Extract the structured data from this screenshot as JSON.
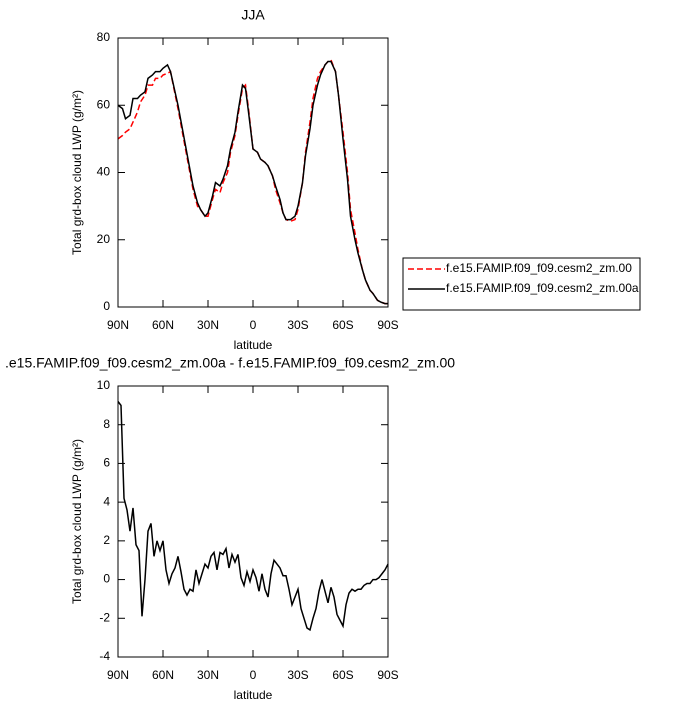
{
  "chart_data": [
    {
      "type": "line",
      "title": "JJA",
      "xlabel": "latitude",
      "ylabel": "Total grd-box cloud LWP (g/m²)",
      "xlim": [
        90,
        -90
      ],
      "ylim": [
        0,
        80
      ],
      "xticks": [
        {
          "value": 90,
          "label": "90N"
        },
        {
          "value": 60,
          "label": "60N"
        },
        {
          "value": 30,
          "label": "30N"
        },
        0,
        {
          "value": -30,
          "label": "30S"
        },
        {
          "value": -60,
          "label": "60S"
        },
        {
          "value": -90,
          "label": "90S"
        }
      ],
      "yticks": [
        0,
        20,
        40,
        60,
        80
      ],
      "legend": "right",
      "x": [
        90,
        87,
        85,
        82,
        80,
        77,
        75,
        72,
        70,
        67,
        65,
        62,
        60,
        57,
        55,
        50,
        45,
        40,
        37,
        35,
        32,
        30,
        27,
        25,
        22,
        20,
        17,
        15,
        12,
        10,
        7,
        5,
        3,
        0,
        -3,
        -5,
        -8,
        -10,
        -13,
        -15,
        -18,
        -20,
        -22,
        -25,
        -28,
        -30,
        -33,
        -35,
        -38,
        -40,
        -43,
        -45,
        -48,
        -50,
        -52,
        -55,
        -57,
        -60,
        -63,
        -65,
        -68,
        -70,
        -73,
        -75,
        -78,
        -80,
        -83,
        -85,
        -88,
        -90
      ],
      "series": [
        {
          "name": "f.e15.FAMIP.f09_f09.cesm2_zm.00",
          "color": "#ff0000",
          "dash": "dashed",
          "values": [
            50,
            51,
            52,
            53,
            55,
            58,
            61,
            63,
            66,
            66,
            68,
            68,
            69,
            69.5,
            70,
            59,
            47,
            35,
            30,
            29,
            27,
            27,
            32,
            35,
            34,
            37,
            40,
            46,
            51,
            57,
            65,
            66,
            59,
            47,
            46,
            44,
            43,
            42,
            39,
            35,
            31,
            28,
            26,
            25.5,
            26,
            29,
            37,
            46,
            55,
            62,
            68,
            70,
            72,
            73,
            73.5,
            70,
            63,
            52,
            40,
            29,
            22,
            17,
            11,
            8,
            5,
            4,
            2,
            1.5,
            1,
            1
          ]
        },
        {
          "name": "f.e15.FAMIP.f09_f09.cesm2_zm.00a",
          "color": "#000000",
          "dash": "solid",
          "values": [
            60,
            59,
            56,
            57,
            62,
            62,
            63,
            64,
            68,
            69,
            70,
            70,
            71,
            72,
            70,
            60,
            48,
            36,
            31,
            29,
            27,
            28,
            33,
            37,
            36,
            38,
            42,
            47,
            52,
            58,
            66,
            65,
            58,
            47,
            46,
            44,
            43,
            42,
            39,
            36,
            32,
            28,
            26,
            26,
            27,
            30,
            37,
            45,
            53,
            60,
            66,
            69,
            72,
            73,
            73,
            70,
            63,
            50,
            38,
            27,
            20,
            16,
            11,
            8,
            5,
            4,
            2,
            1.5,
            1,
            1
          ]
        }
      ]
    },
    {
      "type": "line",
      "title": ".e15.FAMIP.f09_f09.cesm2_zm.00a - f.e15.FAMIP.f09_f09.cesm2_zm.00",
      "xlabel": "latitude",
      "ylabel": "Total grd-box cloud LWP (g/m²)",
      "xlim": [
        90,
        -90
      ],
      "ylim": [
        -4,
        10
      ],
      "xticks": [
        {
          "value": 90,
          "label": "90N"
        },
        {
          "value": 60,
          "label": "60N"
        },
        {
          "value": 30,
          "label": "30N"
        },
        0,
        {
          "value": -30,
          "label": "30S"
        },
        {
          "value": -60,
          "label": "60S"
        },
        {
          "value": -90,
          "label": "90S"
        }
      ],
      "yticks": [
        -4,
        -2,
        0,
        2,
        4,
        6,
        8,
        10
      ],
      "color": "#000000",
      "x": [
        90,
        88,
        86,
        84,
        82,
        80,
        78,
        76,
        74,
        72,
        70,
        68,
        66,
        64,
        62,
        60,
        58,
        56,
        54,
        52,
        50,
        48,
        46,
        44,
        42,
        40,
        38,
        36,
        34,
        32,
        30,
        28,
        26,
        24,
        22,
        20,
        18,
        16,
        14,
        12,
        10,
        8,
        6,
        4,
        2,
        0,
        -2,
        -4,
        -6,
        -8,
        -10,
        -12,
        -14,
        -16,
        -18,
        -20,
        -22,
        -24,
        -26,
        -28,
        -30,
        -32,
        -34,
        -36,
        -38,
        -40,
        -42,
        -44,
        -46,
        -48,
        -50,
        -52,
        -54,
        -56,
        -58,
        -60,
        -62,
        -64,
        -66,
        -68,
        -70,
        -72,
        -74,
        -76,
        -78,
        -80,
        -82,
        -84,
        -86,
        -88,
        -90
      ],
      "values": [
        9.2,
        9,
        4.2,
        3.6,
        2.5,
        3.7,
        1.8,
        1.5,
        -1.9,
        0,
        2.5,
        2.9,
        1.2,
        2,
        1.5,
        2,
        0.5,
        -0.2,
        0.3,
        0.6,
        1.2,
        0.4,
        -0.5,
        -0.8,
        -0.5,
        -0.6,
        0.5,
        -0.2,
        0.3,
        0.8,
        0.6,
        1.2,
        1.4,
        0.5,
        1.4,
        1.3,
        1.6,
        0.6,
        1.3,
        0.9,
        1.3,
        0.1,
        -0.3,
        0.4,
        -0.1,
        0.5,
        0.1,
        -0.6,
        0.3,
        -0.5,
        -0.9,
        0.3,
        1,
        0.8,
        0.6,
        0.2,
        0.2,
        -0.5,
        -1.3,
        -0.9,
        -0.5,
        -1.5,
        -2.0,
        -2.5,
        -2.6,
        -2.0,
        -1.5,
        -0.6,
        0,
        -0.6,
        -1.2,
        -0.4,
        -0.9,
        -1.8,
        -2.1,
        -2.4,
        -1.3,
        -0.7,
        -0.5,
        -0.6,
        -0.5,
        -0.5,
        -0.3,
        -0.2,
        -0.2,
        0,
        0,
        0.1,
        0.3,
        0.5,
        0.8
      ]
    }
  ]
}
